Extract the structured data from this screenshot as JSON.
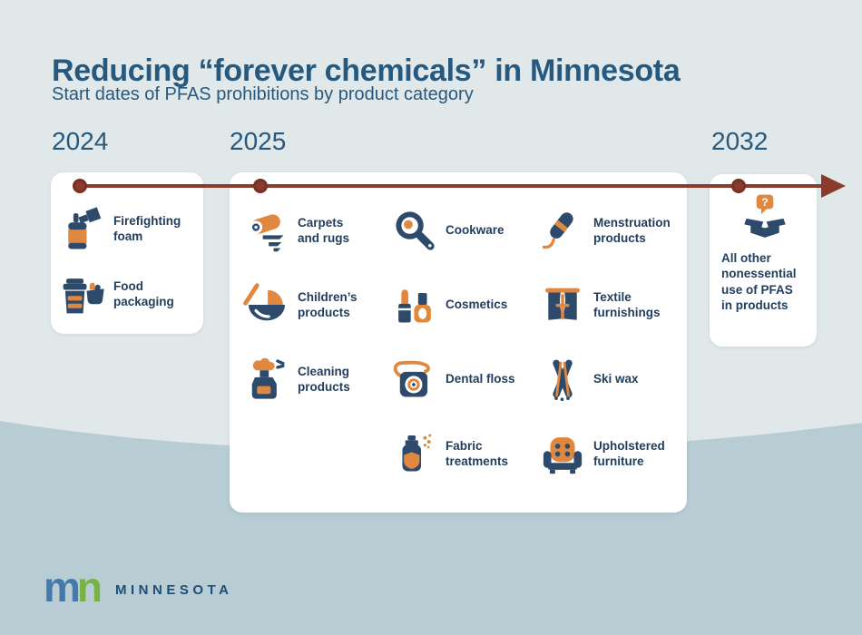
{
  "page": {
    "title": "Reducing “forever chemicals” in Minnesota",
    "subtitle": "Start dates of PFAS prohibitions by product category"
  },
  "colors": {
    "bg_top": "#e0e8ea",
    "bg_bottom": "#b7cdd3",
    "card_bg": "#ffffff",
    "heading_blue": "#27597f",
    "text_navy": "#223e5e",
    "icon_navy": "#2e4a6b",
    "icon_orange": "#e0883f",
    "timeline_maroon": "#8a3c2c",
    "logo_blue": "#4579aa",
    "logo_green": "#77b243",
    "wordmark_navy": "#1d4e78"
  },
  "timeline": {
    "years": [
      {
        "label": "2024"
      },
      {
        "label": "2025"
      },
      {
        "label": "2032"
      }
    ]
  },
  "cards": [
    {
      "year": "2024",
      "items": [
        {
          "label": "Firefighting\nfoam",
          "icon": "fire-extinguisher-icon"
        },
        {
          "label": "Food\npackaging",
          "icon": "food-packaging-icon"
        }
      ]
    },
    {
      "year": "2025",
      "columns": [
        [
          {
            "label": "Carpets\nand rugs",
            "icon": "carpet-roll-icon"
          },
          {
            "label": "Children’s\nproducts",
            "icon": "baby-cradle-icon"
          },
          {
            "label": "Cleaning\nproducts",
            "icon": "spray-bottle-icon"
          }
        ],
        [
          {
            "label": "Cookware",
            "icon": "frying-pan-icon"
          },
          {
            "label": "Cosmetics",
            "icon": "cosmetics-icon"
          },
          {
            "label": "Dental floss",
            "icon": "dental-floss-icon"
          },
          {
            "label": "Fabric\ntreatments",
            "icon": "fabric-spray-icon"
          }
        ],
        [
          {
            "label": "Menstruation\nproducts",
            "icon": "tampon-icon"
          },
          {
            "label": "Textile\nfurnishings",
            "icon": "curtains-icon"
          },
          {
            "label": "Ski wax",
            "icon": "crossed-skis-icon"
          },
          {
            "label": "Upholstered\nfurniture",
            "icon": "armchair-icon"
          }
        ]
      ]
    },
    {
      "year": "2032",
      "items": [
        {
          "label": "All other\nnonessential\nuse of PFAS\nin products",
          "icon": "open-box-question-icon"
        }
      ]
    }
  ],
  "footer": {
    "logo_m": "m",
    "logo_n": "n",
    "wordmark": "MINNESOTA"
  }
}
